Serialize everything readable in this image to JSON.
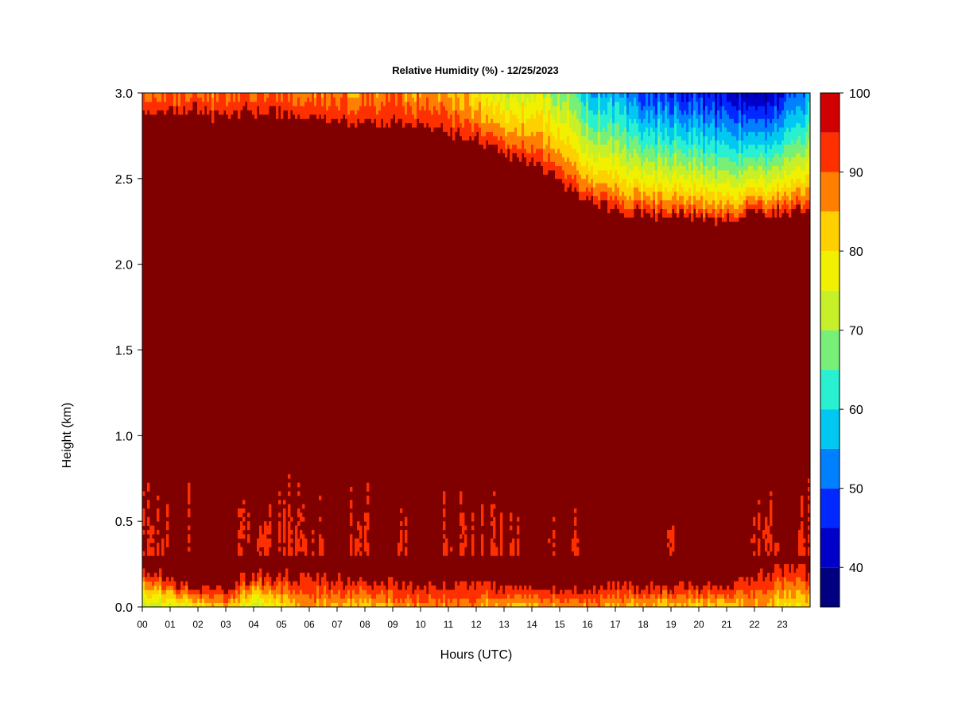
{
  "chart_data": {
    "type": "heatmap",
    "title": "Relative Humidity (%) - 12/25/2023",
    "xlabel": "Hours (UTC)",
    "ylabel": "Height (km)",
    "x_ticks": [
      "00",
      "01",
      "02",
      "03",
      "04",
      "05",
      "06",
      "07",
      "08",
      "09",
      "10",
      "11",
      "12",
      "13",
      "14",
      "15",
      "16",
      "17",
      "18",
      "19",
      "20",
      "21",
      "22",
      "23"
    ],
    "y_ticks": [
      "0.0",
      "0.5",
      "1.0",
      "1.5",
      "2.0",
      "2.5",
      "3.0"
    ],
    "xlim": [
      0,
      24
    ],
    "ylim": [
      0,
      3
    ],
    "colorbar": {
      "levels": [
        35,
        40,
        45,
        50,
        55,
        60,
        65,
        70,
        75,
        80,
        85,
        90,
        95,
        100
      ],
      "colors": [
        "#000080",
        "#0000c8",
        "#0028ff",
        "#0080ff",
        "#00c8f0",
        "#28f0d0",
        "#78f078",
        "#c8f028",
        "#f0f000",
        "#ffd000",
        "#ff8000",
        "#ff3000",
        "#d00000",
        "#800000"
      ],
      "tick_labels": [
        "40",
        "50",
        "60",
        "70",
        "80",
        "90",
        "100"
      ],
      "tick_values": [
        40,
        50,
        60,
        70,
        80,
        90,
        100
      ]
    },
    "profiles": {
      "hours": [
        0,
        2,
        3,
        4,
        6,
        8,
        10,
        12,
        13,
        14,
        15,
        16,
        17,
        18,
        19,
        20,
        21,
        22,
        23,
        24
      ],
      "top_layer_min_rh": [
        88,
        90,
        88,
        90,
        88,
        88,
        86,
        80,
        72,
        76,
        70,
        58,
        55,
        48,
        48,
        45,
        42,
        40,
        44,
        55
      ],
      "top_layer_base_km": [
        2.85,
        2.82,
        2.82,
        2.82,
        2.8,
        2.78,
        2.75,
        2.7,
        2.62,
        2.55,
        2.45,
        2.35,
        2.3,
        2.27,
        2.27,
        2.25,
        2.25,
        2.28,
        2.3,
        2.3
      ],
      "surface_min_rh": [
        70,
        78,
        85,
        72,
        86,
        82,
        88,
        86,
        84,
        85,
        85,
        86,
        86,
        82,
        82,
        82,
        82,
        84,
        80,
        80
      ],
      "surface_layer_top_km": [
        0.22,
        0.1,
        0.1,
        0.2,
        0.18,
        0.16,
        0.12,
        0.15,
        0.12,
        0.1,
        0.1,
        0.1,
        0.14,
        0.12,
        0.12,
        0.12,
        0.12,
        0.2,
        0.22,
        0.22
      ],
      "mid_patch_hours": [
        [
          0,
          0.9
        ],
        [
          1.6,
          1.7
        ],
        [
          3.4,
          4.6
        ],
        [
          4.8,
          6.6
        ],
        [
          7.5,
          8.1
        ],
        [
          9.1,
          9.5
        ],
        [
          10.6,
          12.9
        ],
        [
          13.2,
          13.6
        ],
        [
          14.6,
          14.9
        ],
        [
          15.4,
          15.7
        ],
        [
          18.9,
          19.1
        ],
        [
          21.8,
          22.9
        ],
        [
          23.6,
          24
        ]
      ],
      "mid_patch_top_km": [
        0.8,
        0.75,
        0.78,
        0.8,
        0.8,
        0.72,
        0.75,
        0.7,
        0.62,
        0.65,
        0.7,
        0.68,
        0.75
      ]
    }
  }
}
